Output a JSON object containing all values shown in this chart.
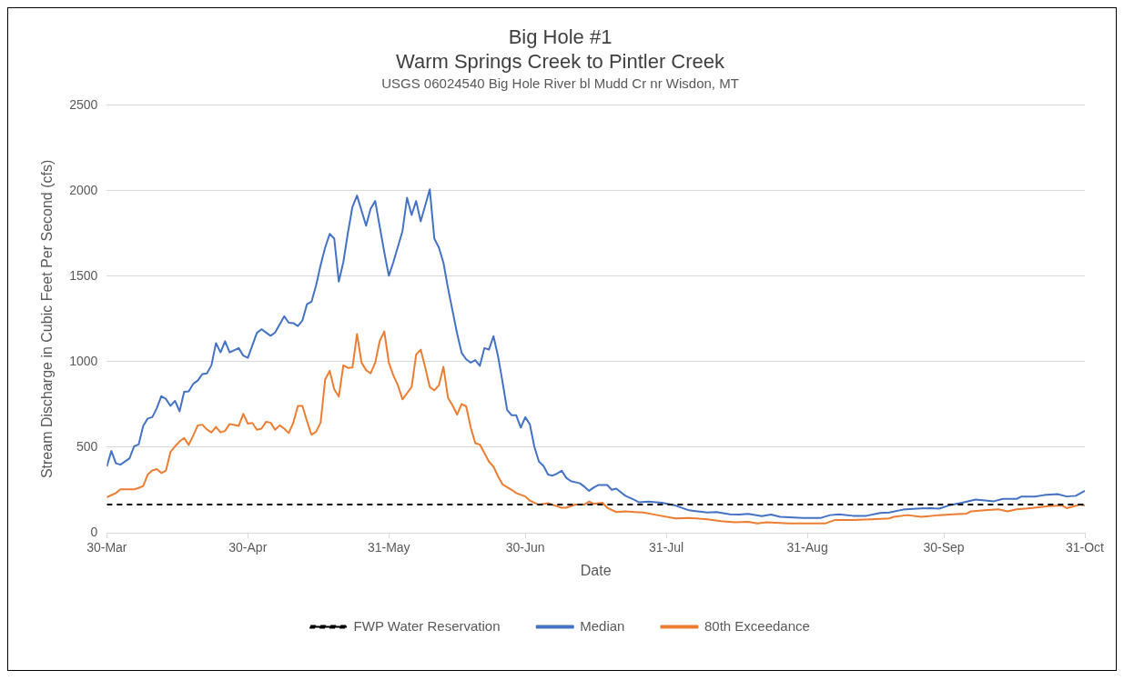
{
  "chart_data": {
    "type": "line",
    "title": "Big Hole #1",
    "subtitle": "Warm Springs Creek to Pintler Creek",
    "annotations": [
      "USGS 06024540 Big Hole River bl Mudd Cr nr Wisdon, MT"
    ],
    "xlabel": "Date",
    "ylabel": "Stream Discharge in Cubic Feet Per Second (cfs)",
    "xlim": [
      "--03-30",
      "--10-31"
    ],
    "xticks": [
      {
        "value": "--03-30",
        "label": "30-Mar"
      },
      {
        "value": "--04-30",
        "label": "30-Apr"
      },
      {
        "value": "--05-31",
        "label": "31-May"
      },
      {
        "value": "--06-30",
        "label": "30-Jun"
      },
      {
        "value": "--07-31",
        "label": "31-Jul"
      },
      {
        "value": "--08-31",
        "label": "31-Aug"
      },
      {
        "value": "--09-30",
        "label": "30-Sep"
      },
      {
        "value": "--10-31",
        "label": "31-Oct"
      }
    ],
    "ylim": [
      0,
      2500
    ],
    "yticks": [
      0,
      500,
      1000,
      1500,
      2000,
      2500
    ],
    "grid": "y",
    "legend": "bottom",
    "marker": "none",
    "ref_lines": [
      {
        "axis": "y",
        "value": 165,
        "label": "FWP Water Reservation",
        "color": "#000000",
        "line_style": "dashed"
      }
    ],
    "series": [
      {
        "name": "Median",
        "color": "#4472c4",
        "x": [
          "--03-30",
          "--03-31",
          "--04-01",
          "--04-02",
          "--04-04",
          "--04-05",
          "--04-06",
          "--04-07",
          "--04-08",
          "--04-09",
          "--04-10",
          "--04-11",
          "--04-12",
          "--04-13",
          "--04-14",
          "--04-15",
          "--04-16",
          "--04-17",
          "--04-18",
          "--04-19",
          "--04-20",
          "--04-21",
          "--04-22",
          "--04-23",
          "--04-24",
          "--04-25",
          "--04-26",
          "--04-28",
          "--04-29",
          "--04-30",
          "--05-02",
          "--05-03",
          "--05-05",
          "--05-06",
          "--05-08",
          "--05-09",
          "--05-10",
          "--05-11",
          "--05-12",
          "--05-13",
          "--05-14",
          "--05-15",
          "--05-16",
          "--05-17",
          "--05-18",
          "--05-19",
          "--05-20",
          "--05-21",
          "--05-22",
          "--05-23",
          "--05-24",
          "--05-26",
          "--05-27",
          "--05-28",
          "--05-30",
          "--05-31",
          "--06-01",
          "--06-03",
          "--06-04",
          "--06-05",
          "--06-06",
          "--06-07",
          "--06-09",
          "--06-10",
          "--06-11",
          "--06-12",
          "--06-13",
          "--06-14",
          "--06-15",
          "--06-16",
          "--06-17",
          "--06-18",
          "--06-19",
          "--06-20",
          "--06-21",
          "--06-22",
          "--06-23",
          "--06-24",
          "--06-25",
          "--06-26",
          "--06-27",
          "--06-28",
          "--06-29",
          "--06-30",
          "--07-01",
          "--07-02",
          "--07-03",
          "--07-04",
          "--07-05",
          "--07-06",
          "--07-07",
          "--07-08",
          "--07-09",
          "--07-10",
          "--07-12",
          "--07-13",
          "--07-14",
          "--07-15",
          "--07-16",
          "--07-18",
          "--07-19",
          "--07-20",
          "--07-22",
          "--07-24",
          "--07-25",
          "--07-27",
          "--07-30",
          "--08-02",
          "--08-05",
          "--08-09",
          "--08-11",
          "--08-14",
          "--08-16",
          "--08-18",
          "--08-21",
          "--08-23",
          "--08-25",
          "--08-30",
          "--09-03",
          "--09-05",
          "--09-07",
          "--09-10",
          "--09-13",
          "--09-16",
          "--09-18",
          "--09-21",
          "--09-24",
          "--09-27",
          "--09-29",
          "--10-01",
          "--10-04",
          "--10-07",
          "--10-11",
          "--10-13",
          "--10-16",
          "--10-17",
          "--10-20",
          "--10-22",
          "--10-25",
          "--10-27",
          "--10-29",
          "--10-31"
        ],
        "values": [
          387,
          478,
          406,
          398,
          435,
          505,
          516,
          625,
          668,
          676,
          729,
          799,
          782,
          742,
          771,
          710,
          824,
          827,
          871,
          890,
          928,
          932,
          979,
          1109,
          1055,
          1120,
          1055,
          1080,
          1036,
          1023,
          1169,
          1190,
          1152,
          1171,
          1266,
          1228,
          1226,
          1209,
          1241,
          1336,
          1351,
          1446,
          1564,
          1668,
          1748,
          1720,
          1469,
          1583,
          1754,
          1906,
          1972,
          1796,
          1896,
          1940,
          1640,
          1503,
          1583,
          1764,
          1959,
          1858,
          1940,
          1821,
          2008,
          1720,
          1668,
          1579,
          1431,
          1298,
          1166,
          1052,
          1014,
          995,
          1010,
          976,
          1080,
          1071,
          1150,
          1033,
          881,
          719,
          687,
          687,
          615,
          676,
          634,
          501,
          416,
          391,
          340,
          334,
          346,
          363,
          321,
          302,
          289,
          269,
          245,
          264,
          279,
          279,
          251,
          258,
          216,
          192,
          178,
          182,
          175,
          159,
          131,
          118,
          121,
          108,
          106,
          110,
          97,
          106,
          93,
          87,
          87,
          103,
          108,
          99,
          99,
          116,
          118,
          135,
          141,
          144,
          141,
          159,
          175,
          194,
          184,
          198,
          198,
          211,
          211,
          220,
          226,
          212,
          216,
          245
        ]
      },
      {
        "name": "80th Exceedance",
        "color": "#ed7d31",
        "x": [
          "--03-30",
          "--04-01",
          "--04-02",
          "--04-05",
          "--04-06",
          "--04-07",
          "--04-08",
          "--04-09",
          "--04-10",
          "--04-11",
          "--04-12",
          "--04-13",
          "--04-14",
          "--04-15",
          "--04-16",
          "--04-17",
          "--04-18",
          "--04-19",
          "--04-20",
          "--04-21",
          "--04-22",
          "--04-23",
          "--04-24",
          "--04-25",
          "--04-26",
          "--04-28",
          "--04-29",
          "--04-30",
          "--05-01",
          "--05-02",
          "--05-03",
          "--05-04",
          "--05-05",
          "--05-06",
          "--05-07",
          "--05-08",
          "--05-09",
          "--05-10",
          "--05-11",
          "--05-12",
          "--05-13",
          "--05-14",
          "--05-15",
          "--05-16",
          "--05-17",
          "--05-18",
          "--05-19",
          "--05-20",
          "--05-21",
          "--05-22",
          "--05-23",
          "--05-24",
          "--05-25",
          "--05-26",
          "--05-27",
          "--05-28",
          "--05-29",
          "--05-30",
          "--05-31",
          "--06-01",
          "--06-02",
          "--06-03",
          "--06-05",
          "--06-06",
          "--06-07",
          "--06-08",
          "--06-09",
          "--06-10",
          "--06-11",
          "--06-12",
          "--06-13",
          "--06-14",
          "--06-15",
          "--06-16",
          "--06-17",
          "--06-18",
          "--06-19",
          "--06-20",
          "--06-21",
          "--06-22",
          "--06-23",
          "--06-24",
          "--06-25",
          "--06-27",
          "--06-28",
          "--06-30",
          "--07-01",
          "--07-03",
          "--07-05",
          "--07-06",
          "--07-08",
          "--07-09",
          "--07-11",
          "--07-13",
          "--07-14",
          "--07-15",
          "--07-17",
          "--07-18",
          "--07-20",
          "--07-22",
          "--07-24",
          "--07-26",
          "--07-29",
          "--08-02",
          "--08-05",
          "--08-09",
          "--08-12",
          "--08-15",
          "--08-18",
          "--08-20",
          "--08-22",
          "--08-27",
          "--08-31",
          "--09-04",
          "--09-06",
          "--09-10",
          "--09-14",
          "--09-18",
          "--09-19",
          "--09-22",
          "--09-25",
          "--09-29",
          "--10-02",
          "--10-05",
          "--10-06",
          "--10-09",
          "--10-12",
          "--10-14",
          "--10-16",
          "--10-19",
          "--10-23",
          "--10-26",
          "--10-27",
          "--10-30",
          "--10-31"
        ],
        "values": [
          207,
          232,
          254,
          254,
          262,
          273,
          340,
          364,
          372,
          349,
          363,
          473,
          505,
          534,
          554,
          514,
          568,
          628,
          632,
          604,
          587,
          619,
          587,
          596,
          636,
          625,
          695,
          638,
          642,
          602,
          609,
          649,
          644,
          602,
          628,
          609,
          583,
          644,
          742,
          742,
          653,
          573,
          591,
          644,
          896,
          947,
          839,
          796,
          979,
          964,
          966,
          1162,
          995,
          951,
          932,
          995,
          1122,
          1177,
          995,
          919,
          862,
          780,
          852,
          1042,
          1071,
          966,
          852,
          833,
          862,
          970,
          790,
          744,
          691,
          753,
          739,
          615,
          524,
          516,
          467,
          416,
          387,
          330,
          283,
          251,
          232,
          212,
          188,
          163,
          173,
          163,
          146,
          146,
          165,
          165,
          182,
          169,
          175,
          146,
          121,
          125,
          121,
          118,
          103,
          84,
          87,
          78,
          68,
          61,
          64,
          55,
          61,
          55,
          55,
          55,
          74,
          74,
          78,
          84,
          93,
          103,
          93,
          103,
          108,
          112,
          125,
          131,
          137,
          125,
          137,
          144,
          155,
          159,
          144,
          165,
          159
        ]
      }
    ]
  }
}
